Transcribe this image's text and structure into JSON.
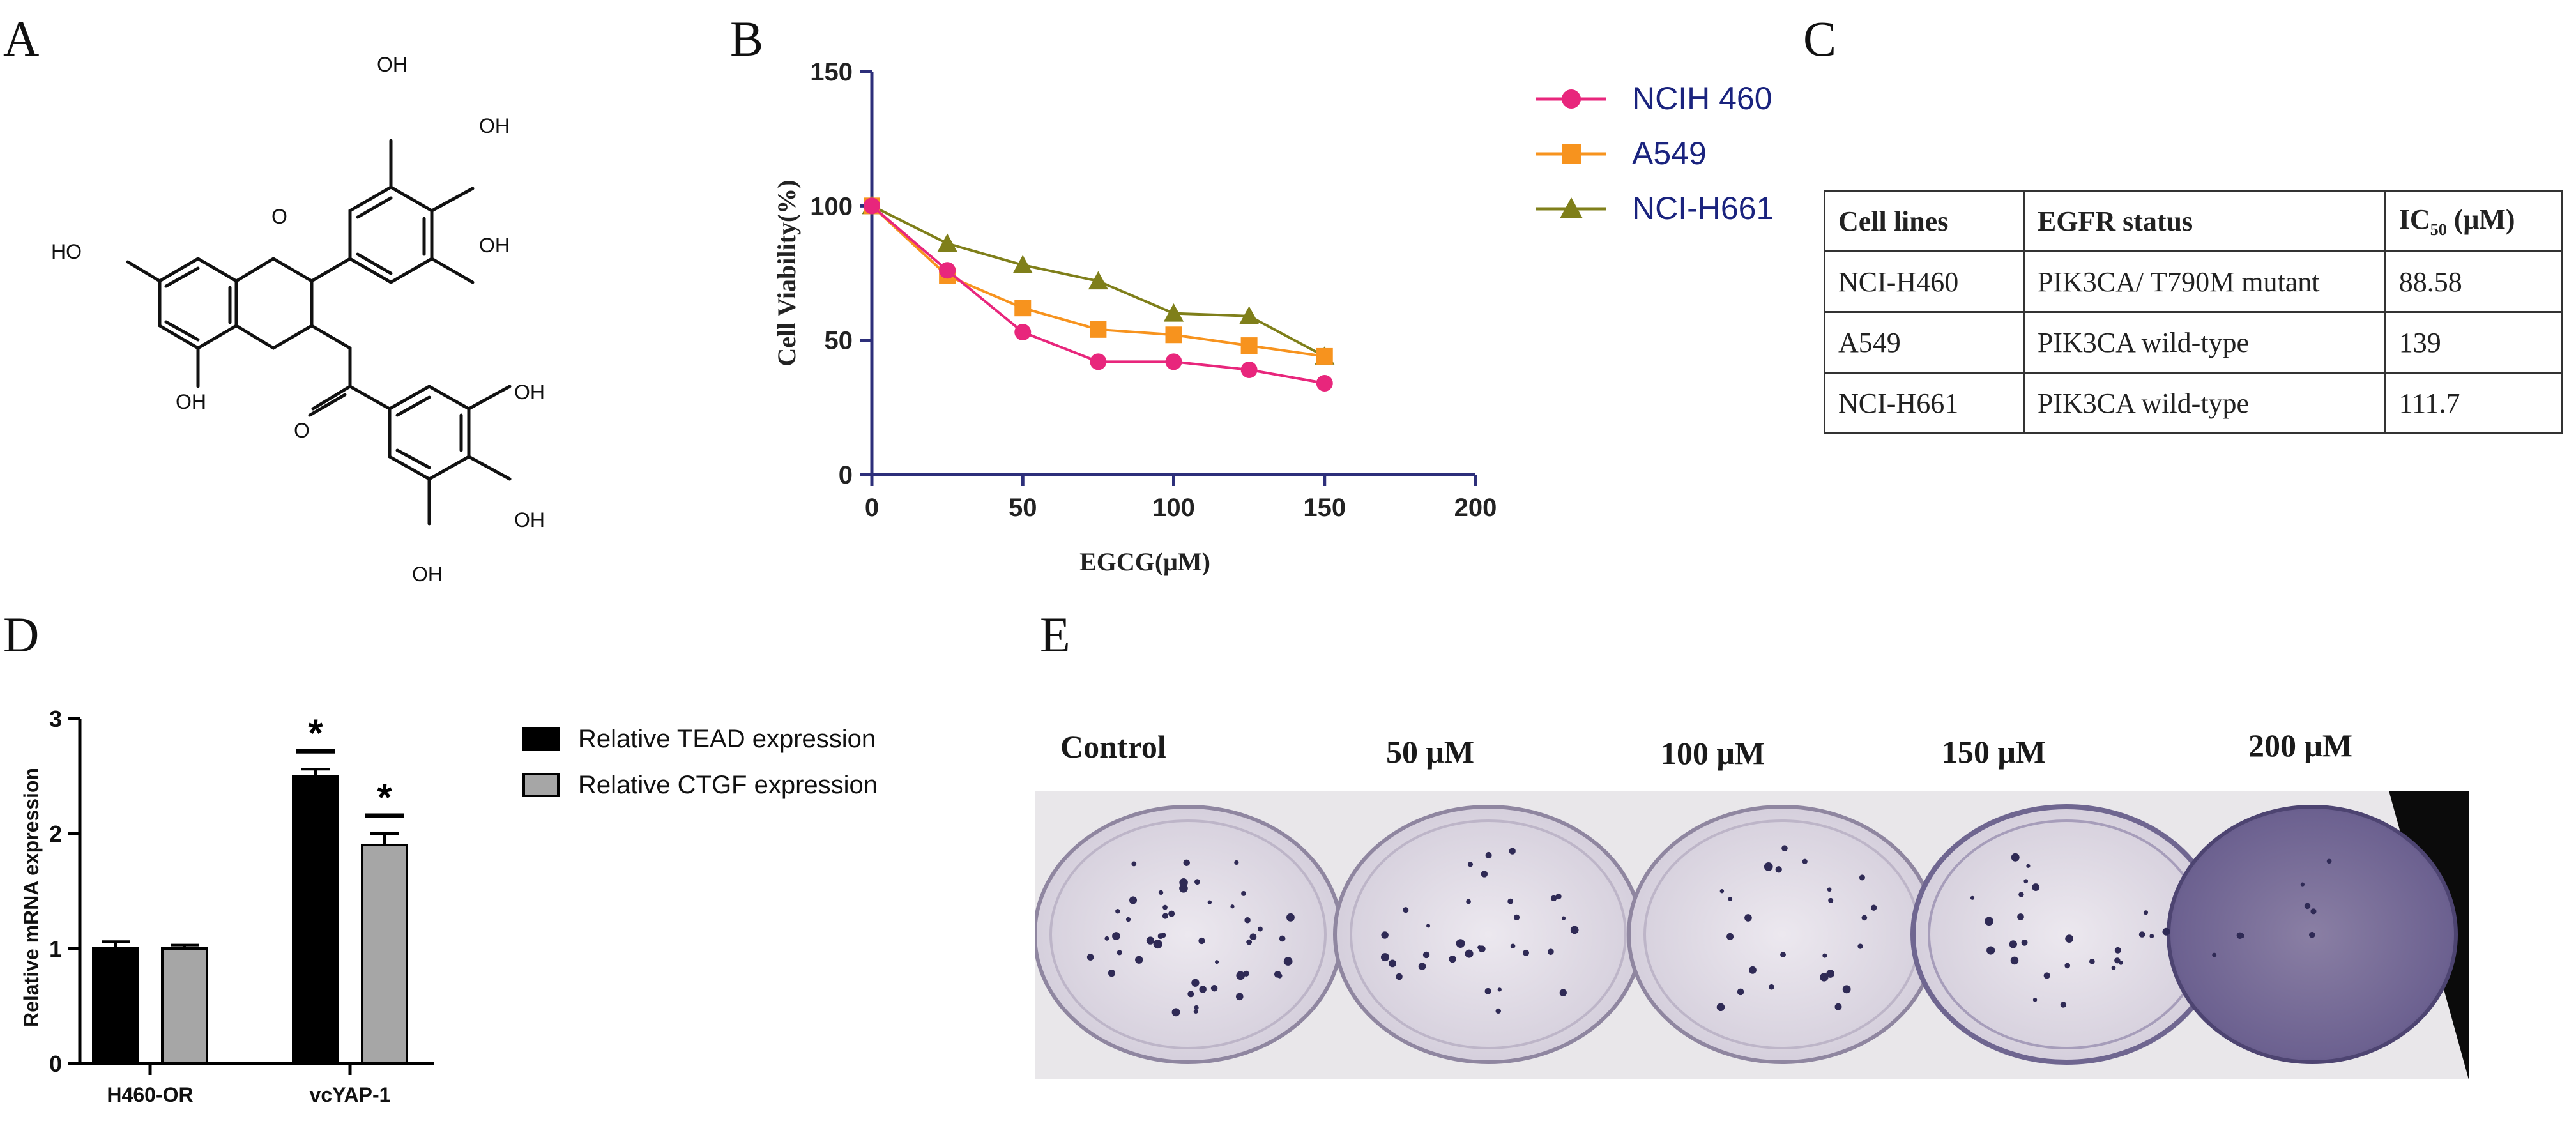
{
  "panels": {
    "A": "A",
    "B": "B",
    "C": "C",
    "D": "D",
    "E": "E"
  },
  "structure_a": {
    "labels": [
      "HO",
      "OH",
      "OH",
      "OH",
      "O",
      "OH",
      "O",
      "OH",
      "OH",
      "OH"
    ]
  },
  "chart_data": [
    {
      "type": "line",
      "xlabel": "EGCG(μM)",
      "ylabel": "Cell Viability(%)",
      "xlim": [
        0,
        200
      ],
      "ylim": [
        0,
        150
      ],
      "xticks": [
        "0",
        "50",
        "100",
        "150",
        "200"
      ],
      "yticks": [
        "0",
        "50",
        "100",
        "150"
      ],
      "legend_position": "right",
      "series": [
        {
          "name": "NCIH 460",
          "marker": "circle",
          "color": "#e8267c",
          "x": [
            0,
            25,
            50,
            75,
            100,
            125,
            150
          ],
          "y": [
            100,
            76,
            53,
            42,
            42,
            39,
            34
          ]
        },
        {
          "name": "A549",
          "marker": "square",
          "color": "#f7931e",
          "x": [
            0,
            25,
            50,
            75,
            100,
            125,
            150
          ],
          "y": [
            100,
            74,
            62,
            54,
            52,
            48,
            44
          ]
        },
        {
          "name": "NCI-H661",
          "marker": "triangle",
          "color": "#7f7f1a",
          "x": [
            0,
            25,
            50,
            75,
            100,
            125,
            150
          ],
          "y": [
            100,
            86,
            78,
            72,
            60,
            59,
            44
          ]
        }
      ]
    },
    {
      "type": "table",
      "columns": [
        "Cell lines",
        "EGFR status",
        "IC50 (μM)"
      ],
      "rows": [
        [
          "NCI-H460",
          "PIK3CA/ T790M mutant",
          "88.58"
        ],
        [
          "A549",
          "PIK3CA wild-type",
          "139"
        ],
        [
          "NCI-H661",
          "PIK3CA wild-type",
          "111.7"
        ]
      ]
    },
    {
      "type": "bar",
      "ylabel": "Relative mRNA expression",
      "ylim": [
        0,
        3
      ],
      "yticks": [
        "0",
        "1",
        "2",
        "3"
      ],
      "categories": [
        "H460-OR",
        "vcYAP-1"
      ],
      "legend_position": "right",
      "series": [
        {
          "name": "Relative TEAD expression",
          "color": "#000000",
          "values": [
            1.0,
            2.5
          ],
          "errors": [
            0.06,
            0.06
          ]
        },
        {
          "name": "Relative CTGF expression",
          "color": "#a6a6a6",
          "values": [
            1.0,
            1.9
          ],
          "errors": [
            0.03,
            0.1
          ]
        }
      ],
      "significance": [
        "",
        "*"
      ]
    }
  ],
  "table_c": {
    "header": {
      "cell_lines": "Cell lines",
      "egfr": "EGFR status",
      "ic50_main": "IC",
      "ic50_sub": "50",
      "ic50_unit": " (μM)"
    },
    "rows": [
      {
        "line": "NCI-H460",
        "status": "PIK3CA/ T790M mutant",
        "ic50": "88.58"
      },
      {
        "line": "A549",
        "status": "PIK3CA wild-type",
        "ic50": "139"
      },
      {
        "line": "NCI-H661",
        "status": "PIK3CA wild-type",
        "ic50": "111.7"
      }
    ]
  },
  "photo_e": {
    "labels": [
      "Control",
      "50 μM",
      "100 μM",
      "150 μM",
      "200 μM"
    ]
  }
}
